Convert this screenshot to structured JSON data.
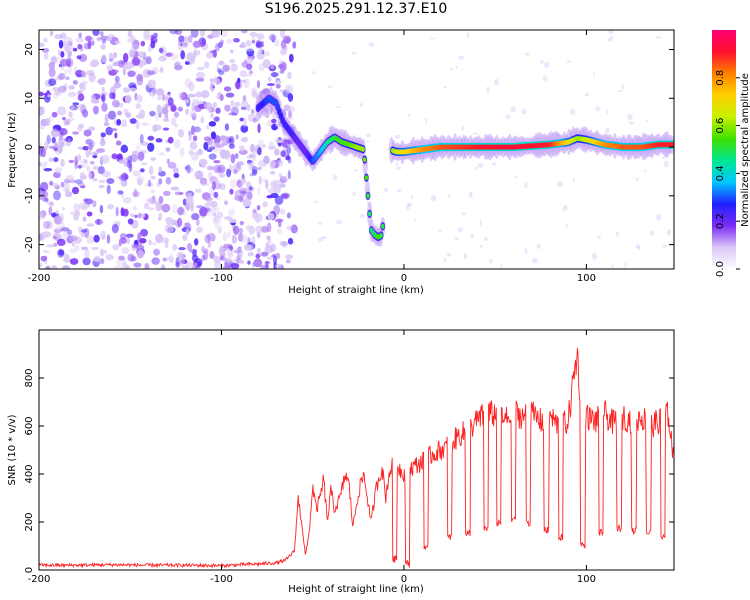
{
  "title": "S196.2025.291.12.37.E10",
  "chart_data": [
    {
      "type": "heatmap",
      "name": "spectrogram",
      "xlabel": "Height of straight line (km)",
      "ylabel": "Frequency (Hz)",
      "xlim": [
        -200,
        148
      ],
      "ylim": [
        -25,
        24
      ],
      "x_ticks": [
        -200,
        -100,
        0,
        100
      ],
      "x_tick_labels": [
        "-200",
        "-100",
        "0",
        "100"
      ],
      "y_ticks": [
        20,
        10,
        0,
        -10,
        -20
      ],
      "y_tick_labels": [
        "20",
        "10",
        "0",
        "-10",
        "-20"
      ],
      "colorbar": {
        "label": "Normalized spectral amplitude",
        "range": [
          0,
          1
        ],
        "ticks": [
          0.0,
          0.2,
          0.4,
          0.6,
          0.8
        ],
        "tick_labels": [
          "0.0",
          "0.2",
          "0.4",
          "0.6",
          "0.8"
        ],
        "colors": [
          "#ffffff",
          "#d9c6f5",
          "#7a2cf5",
          "#2020ff",
          "#00c8ff",
          "#00e890",
          "#40e000",
          "#c8f000",
          "#ffd000",
          "#ff8000",
          "#ff1030",
          "#ff0070"
        ]
      },
      "ridge": {
        "x": [
          -80,
          -74,
          -70,
          -66,
          -62,
          -58,
          -54,
          -50,
          -46,
          -42,
          -38,
          -34,
          -30,
          -26,
          -22,
          -18,
          -16,
          -14,
          -12,
          -8,
          -4,
          0,
          10,
          20,
          40,
          60,
          80,
          90,
          95,
          100,
          110,
          120,
          130,
          140,
          148
        ],
        "y": [
          8,
          10,
          9,
          5,
          3,
          1,
          -1,
          -3,
          -1,
          1,
          2,
          1,
          0.5,
          0,
          -0.5,
          -17,
          -18,
          -18.5,
          -18,
          -0.5,
          -1,
          -1,
          -0.5,
          0,
          0,
          0,
          0.5,
          1,
          1.8,
          1.5,
          0.5,
          0,
          0,
          0.5,
          0.5
        ],
        "amplitude": [
          0.25,
          0.3,
          0.3,
          0.25,
          0.25,
          0.2,
          0.2,
          0.3,
          0.35,
          0.45,
          0.5,
          0.55,
          0.55,
          0.6,
          0.6,
          0.45,
          0.5,
          0.55,
          0.5,
          0.55,
          0.65,
          0.7,
          0.8,
          0.85,
          0.9,
          0.92,
          0.9,
          0.7,
          0.6,
          0.65,
          0.8,
          0.85,
          0.85,
          0.9,
          0.9
        ]
      }
    },
    {
      "type": "line",
      "name": "snr",
      "xlabel": "Height of straight line (km)",
      "ylabel": "SNR (10 * v/v)",
      "xlim": [
        -200,
        148
      ],
      "ylim": [
        0,
        1000
      ],
      "x_ticks": [
        -200,
        -100,
        0,
        100
      ],
      "x_tick_labels": [
        "-200",
        "-100",
        "0",
        "100"
      ],
      "y_ticks": [
        0,
        200,
        400,
        600,
        800
      ],
      "y_tick_labels": [
        "0",
        "200",
        "400",
        "600",
        "800"
      ],
      "color": "#ff2020",
      "series": [
        {
          "name": "SNR",
          "x": [
            -200,
            -180,
            -160,
            -140,
            -120,
            -100,
            -90,
            -80,
            -70,
            -65,
            -60,
            -58,
            -56,
            -54,
            -52,
            -50,
            -48,
            -46,
            -44,
            -42,
            -40,
            -38,
            -35,
            -32,
            -30,
            -28,
            -25,
            -22,
            -20,
            -18,
            -15,
            -12,
            -10,
            -8,
            -5,
            -2,
            0,
            5,
            10,
            15,
            20,
            25,
            30,
            35,
            40,
            45,
            50,
            55,
            60,
            65,
            70,
            75,
            80,
            85,
            90,
            93,
            95,
            97,
            100,
            105,
            110,
            115,
            120,
            125,
            130,
            135,
            140,
            145,
            148
          ],
          "y": [
            20,
            20,
            22,
            20,
            20,
            18,
            22,
            25,
            30,
            40,
            80,
            300,
            200,
            60,
            150,
            350,
            250,
            300,
            380,
            200,
            330,
            250,
            300,
            400,
            350,
            180,
            320,
            400,
            300,
            200,
            350,
            430,
            300,
            410,
            450,
            420,
            400,
            430,
            450,
            480,
            500,
            520,
            560,
            580,
            620,
            650,
            650,
            620,
            660,
            640,
            650,
            620,
            640,
            600,
            620,
            800,
            900,
            700,
            640,
            620,
            650,
            610,
            640,
            620,
            640,
            600,
            620,
            650,
            450
          ]
        }
      ],
      "dips": {
        "x": [
          -5,
          2,
          12,
          25,
          35,
          45,
          52,
          60,
          68,
          78,
          86,
          98,
          108,
          118,
          126,
          134,
          142
        ],
        "y": [
          30,
          10,
          80,
          120,
          140,
          160,
          180,
          200,
          180,
          150,
          120,
          90,
          140,
          160,
          150,
          140,
          120
        ]
      }
    }
  ]
}
